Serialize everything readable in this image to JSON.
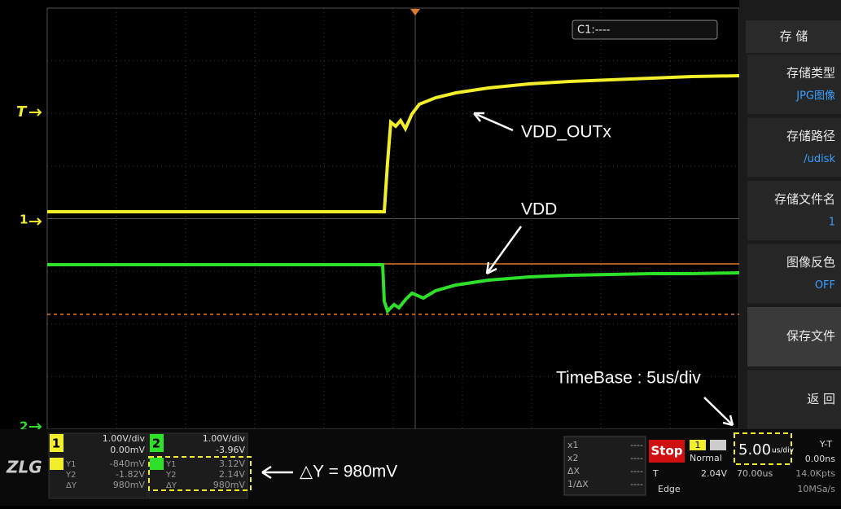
{
  "screen": {
    "markers": {
      "trigger": "T",
      "ch1": "1",
      "ch2": "2"
    },
    "cursor_box": "C1:----",
    "annotations": {
      "vdd_outx": "VDD_OUTx",
      "vdd": "VDD",
      "timebase": "TimeBase : 5us/div",
      "delta_y": "△Y = 980mV"
    }
  },
  "menu": {
    "title": "存 储",
    "items": [
      {
        "label": "存储类型",
        "value": "JPG图像"
      },
      {
        "label": "存储路径",
        "value": "/udisk"
      },
      {
        "label": "存储文件名",
        "value": "1"
      },
      {
        "label": "图像反色",
        "value": "OFF"
      },
      {
        "label": "保存文件"
      },
      {
        "label": "返 回"
      }
    ]
  },
  "status": {
    "logo": "ZLG",
    "channels": [
      {
        "badge": "1",
        "scale": "1.00V/div",
        "offset": "0.00mV",
        "y1": "-840mV",
        "y2": "-1.82V",
        "dy": "980mV"
      },
      {
        "badge": "2",
        "scale": "1.00V/div",
        "offset": "-3.96V",
        "y1": "3.12V",
        "y2": "2.14V",
        "dy": "980mV"
      }
    ],
    "row_labels": {
      "y1": "Y1",
      "y2": "Y2",
      "dy": "ΔY"
    },
    "cursors": [
      {
        "label": "x1",
        "value": "----"
      },
      {
        "label": "x2",
        "value": "----"
      },
      {
        "label": "ΔX",
        "value": "----"
      },
      {
        "label": "1/ΔX",
        "value": "----"
      }
    ],
    "run_state": "Stop",
    "trigger": {
      "source": "1",
      "mode": "Normal",
      "label": "T",
      "level": "2.04V",
      "type": "Edge"
    },
    "timebase": {
      "value": "5.00",
      "unit": "us/div",
      "delay": "70.00us"
    },
    "mode": {
      "name": "Y-T",
      "offset": "0.00ns",
      "depth": "14.0Kpts",
      "rate": "10MSa/s"
    }
  }
}
